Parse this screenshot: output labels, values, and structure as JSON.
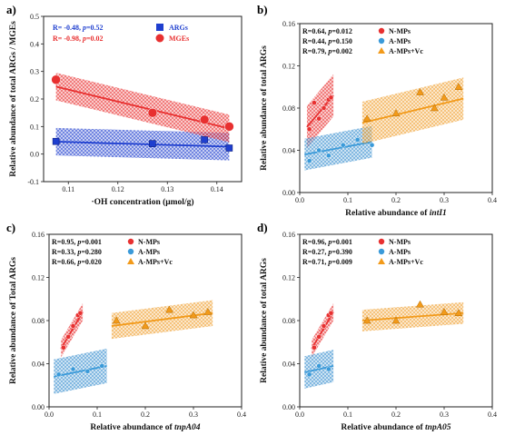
{
  "chart_data": [
    {
      "id": "a",
      "panel_label": "a)",
      "type": "scatter",
      "xlabel": "·OH concentration (μmol/g)",
      "ylabel": "Relative abundance of total ARGs / MGEs",
      "xlim": [
        0.105,
        0.145
      ],
      "ylim": [
        -0.1,
        0.5
      ],
      "xticks": [
        0.11,
        0.12,
        0.13,
        0.14
      ],
      "yticks": [
        -0.1,
        0.0,
        0.1,
        0.2,
        0.3,
        0.4,
        0.5
      ],
      "xtick_labels": [
        "0.11",
        "0.12",
        "0.13",
        "0.14"
      ],
      "ytick_labels": [
        "-0.1",
        "0.0",
        "0.1",
        "0.2",
        "0.3",
        "0.4",
        "0.5"
      ],
      "series": [
        {
          "name": "ARGs",
          "stat": "R= -0.48, p=0.52",
          "color": "#1f3fcf",
          "marker": "square",
          "points": [
            [
              0.1075,
              0.046
            ],
            [
              0.127,
              0.038
            ],
            [
              0.1375,
              0.052
            ],
            [
              0.1425,
              0.022
            ]
          ],
          "fit": [
            [
              0.1075,
              0.045
            ],
            [
              0.1425,
              0.027
            ]
          ],
          "band": 0.05
        },
        {
          "name": "MGEs",
          "stat": "R= -0.98, p=0.02",
          "color": "#e83030",
          "marker": "circle",
          "points": [
            [
              0.1075,
              0.27
            ],
            [
              0.127,
              0.15
            ],
            [
              0.1375,
              0.125
            ],
            [
              0.1425,
              0.1
            ]
          ],
          "fit": [
            [
              0.1075,
              0.245
            ],
            [
              0.1425,
              0.093
            ]
          ],
          "band": 0.05
        }
      ]
    },
    {
      "id": "b",
      "panel_label": "b)",
      "type": "scatter",
      "xlabel_prefix": "Relative abundance of ",
      "xlabel_gene": "intI1",
      "ylabel": "Relative abundance of total ARGs",
      "xlim": [
        0.0,
        0.4
      ],
      "ylim": [
        0.0,
        0.16
      ],
      "xticks": [
        0.0,
        0.1,
        0.2,
        0.3,
        0.4
      ],
      "yticks": [
        0.0,
        0.04,
        0.08,
        0.12,
        0.16
      ],
      "xtick_labels": [
        "0.0",
        "0.1",
        "0.2",
        "0.3",
        "0.4"
      ],
      "ytick_labels": [
        "0.00",
        "0.04",
        "0.08",
        "0.12",
        "0.16"
      ],
      "series": [
        {
          "name": "N-MPs",
          "stat": "R=0.64, p=0.012",
          "color": "#e83030",
          "band_color": "#e83030",
          "marker": "circle",
          "points": [
            [
              0.02,
              0.06
            ],
            [
              0.03,
              0.085
            ],
            [
              0.04,
              0.07
            ],
            [
              0.05,
              0.08
            ],
            [
              0.06,
              0.088
            ],
            [
              0.065,
              0.09
            ]
          ],
          "fit": [
            [
              0.015,
              0.062
            ],
            [
              0.07,
              0.092
            ]
          ],
          "band": 0.02
        },
        {
          "name": "A-MPs",
          "stat": "R=0.44, p=0.150",
          "color": "#3a9ad9",
          "band_color": "#3a8fd0",
          "marker": "circle",
          "points": [
            [
              0.02,
              0.03
            ],
            [
              0.04,
              0.04
            ],
            [
              0.06,
              0.035
            ],
            [
              0.09,
              0.045
            ],
            [
              0.12,
              0.05
            ],
            [
              0.15,
              0.045
            ]
          ],
          "fit": [
            [
              0.01,
              0.036
            ],
            [
              0.15,
              0.048
            ]
          ],
          "band": 0.015
        },
        {
          "name": "A-MPs+Vc",
          "stat": "R=0.79, p=0.002",
          "color": "#f29a1a",
          "band_color": "#f0a030",
          "marker": "triangle",
          "points": [
            [
              0.14,
              0.07
            ],
            [
              0.2,
              0.075
            ],
            [
              0.25,
              0.095
            ],
            [
              0.28,
              0.08
            ],
            [
              0.3,
              0.09
            ],
            [
              0.33,
              0.1
            ]
          ],
          "fit": [
            [
              0.13,
              0.066
            ],
            [
              0.34,
              0.089
            ]
          ],
          "band": 0.02
        }
      ]
    },
    {
      "id": "c",
      "panel_label": "c)",
      "type": "scatter",
      "xlabel_prefix": "Relative abundance of ",
      "xlabel_gene": "tnpA04",
      "ylabel": "Relative abundance of Total ARGs",
      "xlim": [
        0.0,
        0.4
      ],
      "ylim": [
        0.0,
        0.16
      ],
      "xticks": [
        0.0,
        0.1,
        0.2,
        0.3,
        0.4
      ],
      "yticks": [
        0.0,
        0.04,
        0.08,
        0.12,
        0.16
      ],
      "xtick_labels": [
        "0.0",
        "0.1",
        "0.2",
        "0.3",
        "0.4"
      ],
      "ytick_labels": [
        "0.00",
        "0.04",
        "0.08",
        "0.12",
        "0.16"
      ],
      "series": [
        {
          "name": "N-MPs",
          "stat": "R=0.95, p=0.001",
          "color": "#e83030",
          "band_color": "#e83030",
          "marker": "circle",
          "points": [
            [
              0.03,
              0.055
            ],
            [
              0.04,
              0.065
            ],
            [
              0.05,
              0.075
            ],
            [
              0.06,
              0.085
            ],
            [
              0.065,
              0.087
            ]
          ],
          "fit": [
            [
              0.025,
              0.054
            ],
            [
              0.07,
              0.088
            ]
          ],
          "band": 0.008
        },
        {
          "name": "A-MPs",
          "stat": "R=0.33, p=0.280",
          "color": "#3a9ad9",
          "band_color": "#3a8fd0",
          "marker": "circle",
          "points": [
            [
              0.02,
              0.03
            ],
            [
              0.05,
              0.035
            ],
            [
              0.08,
              0.033
            ],
            [
              0.11,
              0.038
            ]
          ],
          "fit": [
            [
              0.01,
              0.028
            ],
            [
              0.12,
              0.038
            ]
          ],
          "band": 0.016
        },
        {
          "name": "A-MPs+Vc",
          "stat": "R=0.66, p=0.020",
          "color": "#f29a1a",
          "band_color": "#f0a030",
          "marker": "triangle",
          "points": [
            [
              0.14,
              0.08
            ],
            [
              0.2,
              0.075
            ],
            [
              0.25,
              0.09
            ],
            [
              0.3,
              0.085
            ],
            [
              0.33,
              0.088
            ]
          ],
          "fit": [
            [
              0.13,
              0.075
            ],
            [
              0.34,
              0.087
            ]
          ],
          "band": 0.012
        }
      ]
    },
    {
      "id": "d",
      "panel_label": "d)",
      "type": "scatter",
      "xlabel_prefix": "Relative abundance of ",
      "xlabel_gene": "tnpA05",
      "ylabel": "Relative abundance of total ARGs",
      "xlim": [
        0.0,
        0.4
      ],
      "ylim": [
        0.0,
        0.16
      ],
      "xticks": [
        0.0,
        0.1,
        0.2,
        0.3,
        0.4
      ],
      "yticks": [
        0.0,
        0.04,
        0.08,
        0.12,
        0.16
      ],
      "xtick_labels": [
        "0.0",
        "0.1",
        "0.2",
        "0.3",
        "0.4"
      ],
      "ytick_labels": [
        "0.00",
        "0.04",
        "0.08",
        "0.12",
        "0.16"
      ],
      "series": [
        {
          "name": "N-MPs",
          "stat": "R=0.96, p=0.001",
          "color": "#e83030",
          "band_color": "#e83030",
          "marker": "circle",
          "points": [
            [
              0.03,
              0.055
            ],
            [
              0.04,
              0.065
            ],
            [
              0.05,
              0.075
            ],
            [
              0.06,
              0.085
            ],
            [
              0.065,
              0.087
            ]
          ],
          "fit": [
            [
              0.025,
              0.054
            ],
            [
              0.07,
              0.088
            ]
          ],
          "band": 0.008
        },
        {
          "name": "A-MPs",
          "stat": "R=0.27, p=0.390",
          "color": "#3a9ad9",
          "band_color": "#3a8fd0",
          "marker": "circle",
          "points": [
            [
              0.02,
              0.03
            ],
            [
              0.04,
              0.038
            ],
            [
              0.06,
              0.035
            ]
          ],
          "fit": [
            [
              0.01,
              0.032
            ],
            [
              0.07,
              0.038
            ]
          ],
          "band": 0.015
        },
        {
          "name": "A-MPs+Vc",
          "stat": "R=0.71, p=0.009",
          "color": "#f29a1a",
          "band_color": "#f0a030",
          "marker": "triangle",
          "points": [
            [
              0.14,
              0.08
            ],
            [
              0.2,
              0.08
            ],
            [
              0.25,
              0.095
            ],
            [
              0.3,
              0.088
            ],
            [
              0.33,
              0.087
            ]
          ],
          "fit": [
            [
              0.13,
              0.08
            ],
            [
              0.34,
              0.087
            ]
          ],
          "band": 0.01
        }
      ]
    }
  ]
}
